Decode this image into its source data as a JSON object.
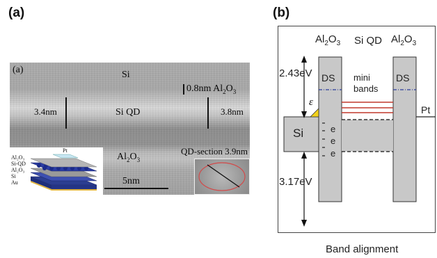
{
  "panel_a": {
    "label": "(a)",
    "image_label": "(a)",
    "si": "Si",
    "al2o3_top_thickness": "0.8nm Al",
    "al2o3_top_chem": "2",
    "al2o3_top_chem_o": "O",
    "al2o3_top_chem_3": "3",
    "left_thickness": "3.4nm",
    "right_thickness": "3.8nm",
    "si_qd": "Si QD",
    "al2o3_bottom": "Al",
    "al2o3_bottom_2": "2",
    "al2o3_bottom_o": "O",
    "al2o3_bottom_3": "3",
    "qd_section": "QD-section 3.9nm",
    "scale_bar": "5nm",
    "stack_labels": [
      "Al₂O₃",
      "Si-QD",
      "Al₂O₃",
      "Si",
      "Au"
    ],
    "stack_pt": "Pt"
  },
  "panel_b": {
    "label": "(b)",
    "al2o3_left": "Al",
    "al2o3_left_sub2": "2",
    "al2o3_left_o": "O",
    "al2o3_left_sub3": "3",
    "si_qd": "Si QD",
    "al2o3_right": "Al",
    "al2o3_right_sub2": "2",
    "al2o3_right_o": "O",
    "al2o3_right_sub3": "3",
    "offset_top": "2.43eV",
    "offset_bottom": "3.17eV",
    "ds_left": "DS",
    "ds_right": "DS",
    "mini_bands_1": "mini",
    "mini_bands_2": "bands",
    "epsilon": "ε",
    "si": "Si",
    "pt": "Pt",
    "electrons": [
      "e",
      "e",
      "e"
    ],
    "caption": "Band alignment",
    "colors": {
      "mini_band_lines": "#c0392b",
      "ds_dash": "#2d3f9b",
      "epsilon_fill": "#f2d21b",
      "barrier_fill": "#c8c8c8"
    }
  }
}
